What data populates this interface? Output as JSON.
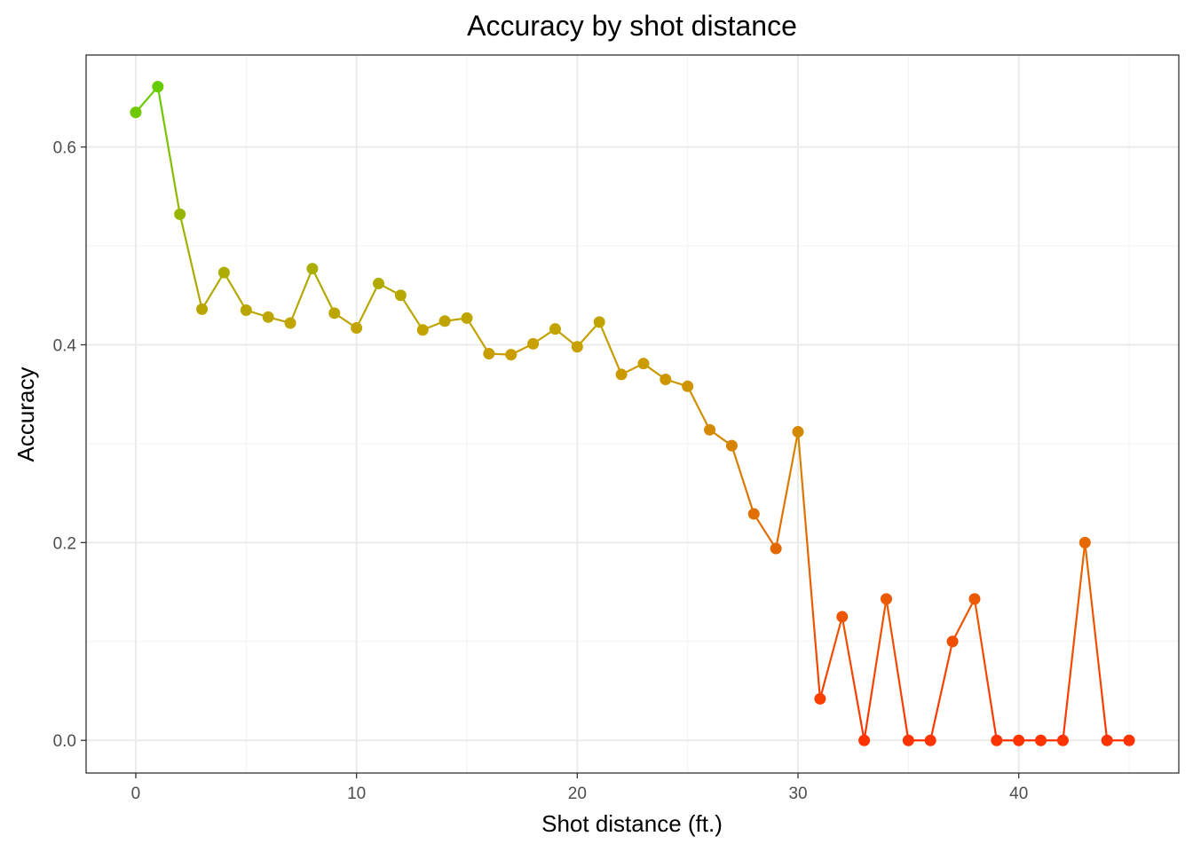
{
  "chart_data": {
    "type": "line",
    "title": "Accuracy by shot distance",
    "xlabel": "Shot distance (ft.)",
    "ylabel": "Accuracy",
    "xlim": [
      -2.25,
      47.25
    ],
    "ylim": [
      -0.033,
      0.693
    ],
    "x_ticks": [
      0,
      10,
      20,
      30,
      40
    ],
    "y_ticks": [
      0.0,
      0.2,
      0.4,
      0.6
    ],
    "y_tick_labels": [
      "0.0",
      "0.2",
      "0.4",
      "0.6"
    ],
    "x_minor_ticks": [
      5,
      15,
      25,
      35,
      45
    ],
    "y_minor_ticks": [
      0.1,
      0.3,
      0.5
    ],
    "grid": true,
    "legend": "none",
    "color_scale": {
      "high": "#66cc00",
      "mid": "#c8a000",
      "low": "#ff3300"
    },
    "x": [
      0,
      1,
      2,
      3,
      4,
      5,
      6,
      7,
      8,
      9,
      10,
      11,
      12,
      13,
      14,
      15,
      16,
      17,
      18,
      19,
      20,
      21,
      22,
      23,
      24,
      25,
      26,
      27,
      28,
      29,
      30,
      31,
      32,
      33,
      34,
      35,
      36,
      37,
      38,
      39,
      40,
      41,
      42,
      43,
      44,
      45
    ],
    "y": [
      0.635,
      0.661,
      0.532,
      0.436,
      0.473,
      0.435,
      0.428,
      0.422,
      0.477,
      0.432,
      0.417,
      0.462,
      0.45,
      0.415,
      0.424,
      0.427,
      0.391,
      0.39,
      0.401,
      0.416,
      0.398,
      0.423,
      0.37,
      0.381,
      0.365,
      0.358,
      0.314,
      0.298,
      0.229,
      0.194,
      0.312,
      0.042,
      0.125,
      0.0,
      0.143,
      0.0,
      0.0,
      0.1,
      0.143,
      0.0,
      0.0,
      0.0,
      0.0,
      0.2,
      0.0,
      0.0
    ]
  }
}
